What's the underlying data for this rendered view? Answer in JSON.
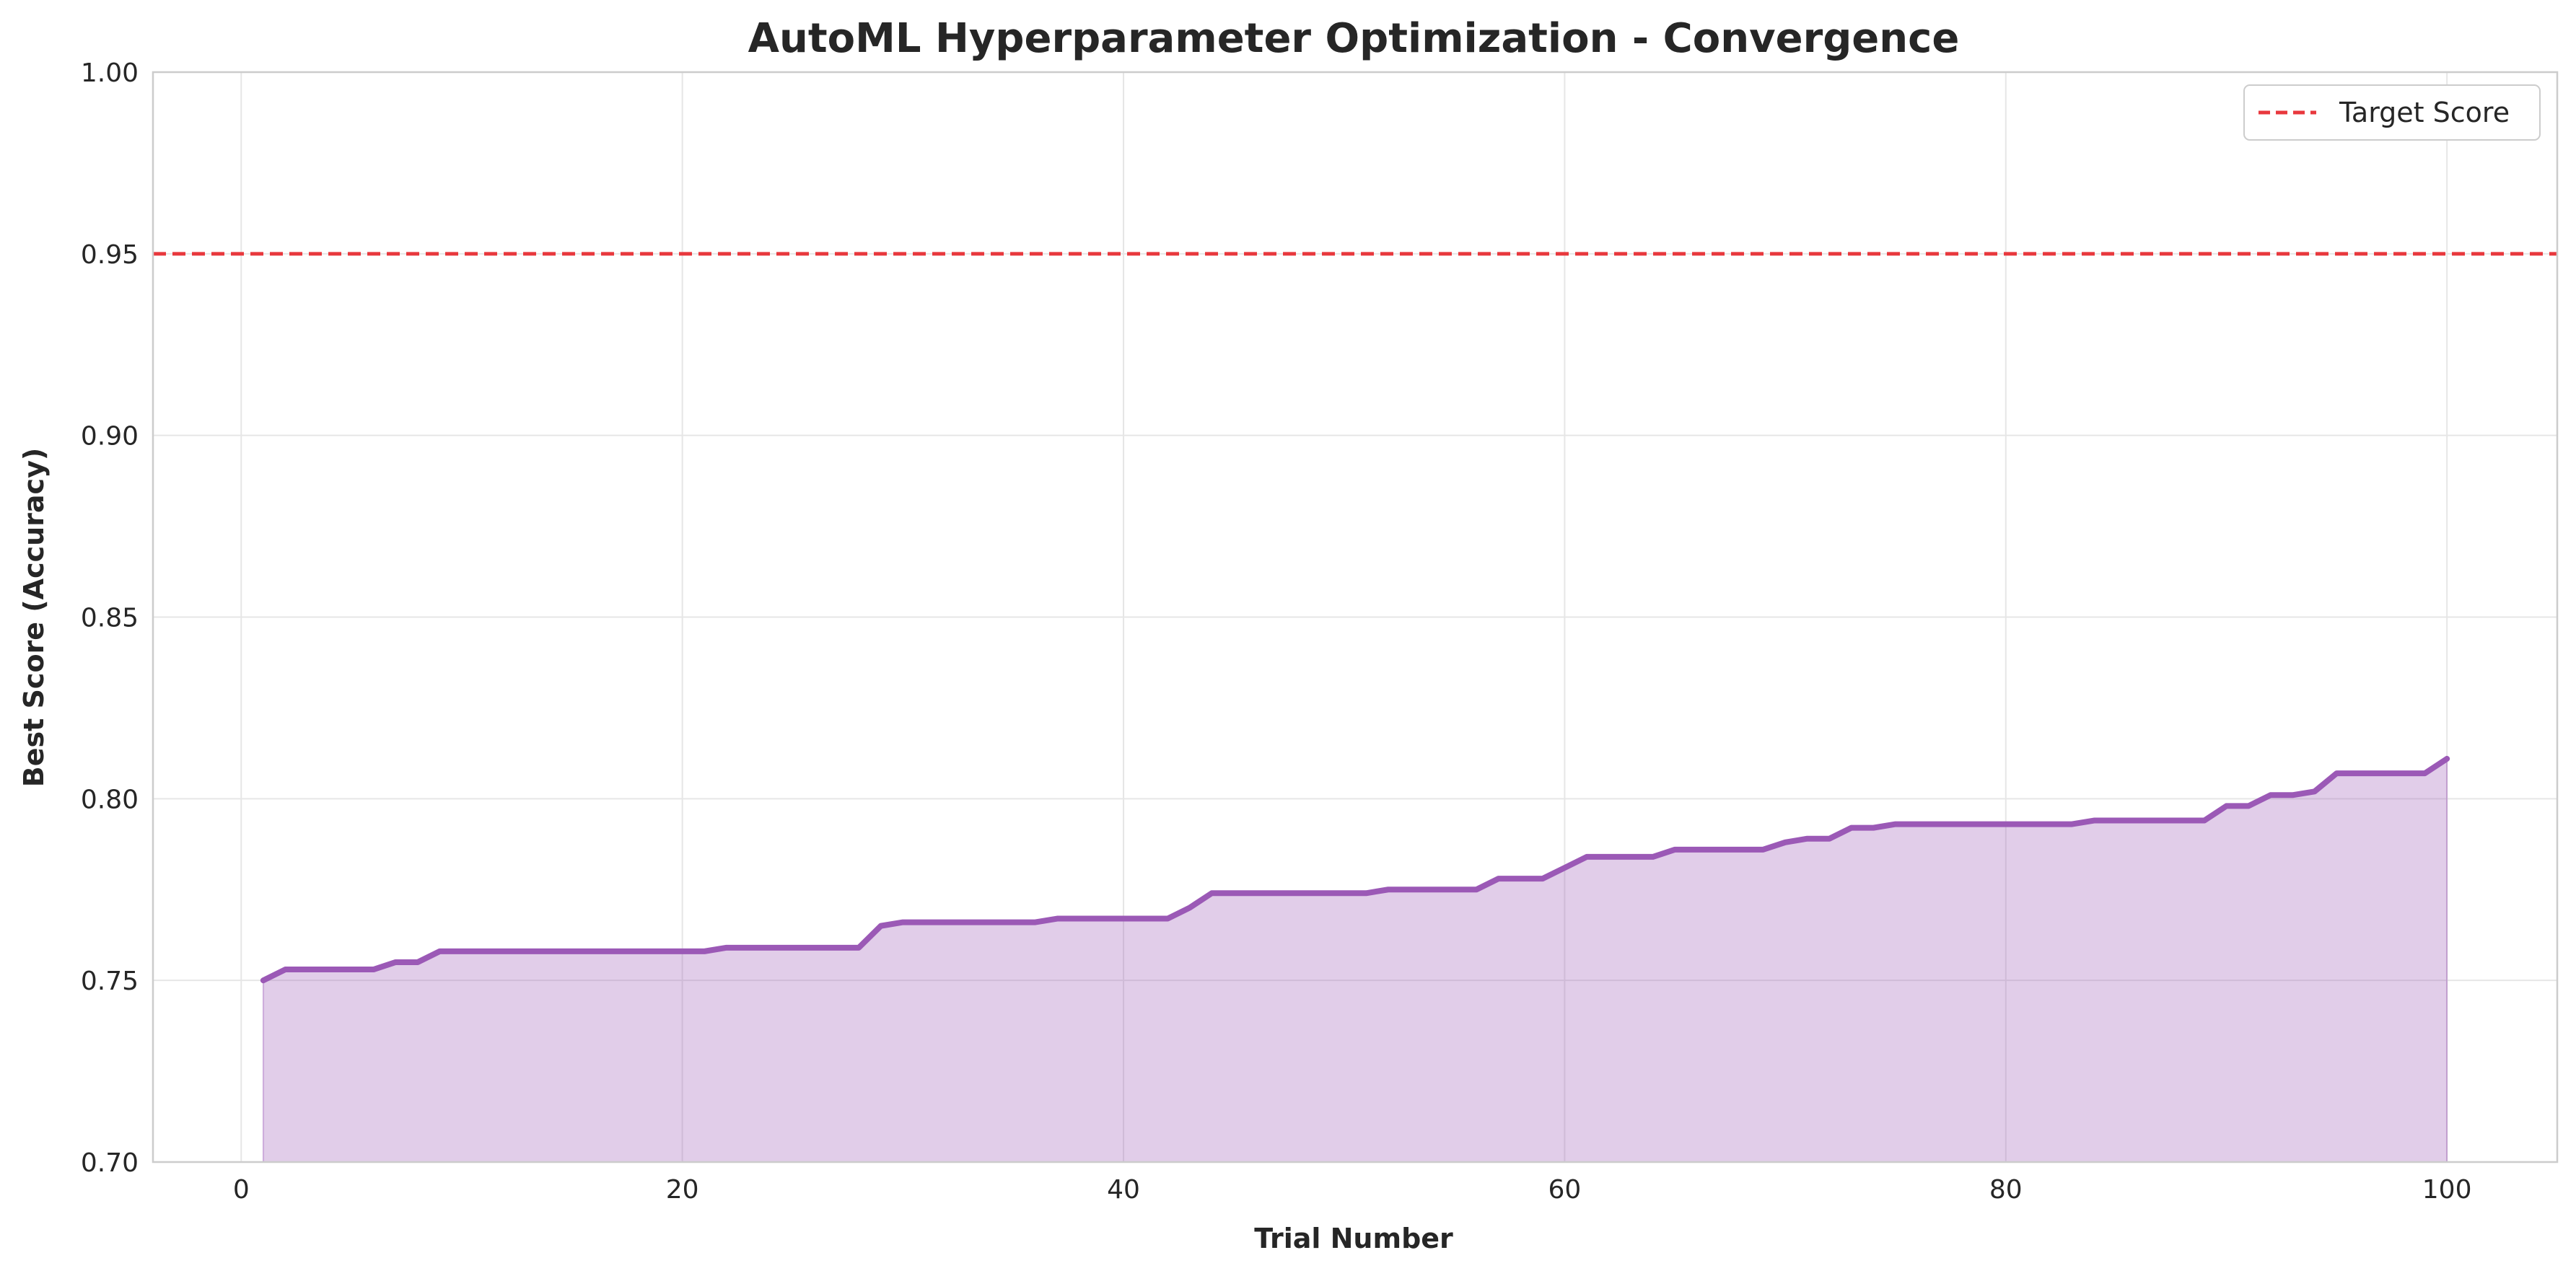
{
  "chart_data": {
    "type": "area",
    "title": "AutoML Hyperparameter Optimization - Convergence",
    "xlabel": "Trial Number",
    "ylabel": "Best Score (Accuracy)",
    "xlim": [
      -4,
      105
    ],
    "ylim": [
      0.7,
      1.0
    ],
    "xticks": [
      0,
      20,
      40,
      60,
      80,
      100
    ],
    "yticks": [
      0.7,
      0.75,
      0.8,
      0.85,
      0.9,
      0.95,
      1.0
    ],
    "ytick_labels": [
      "0.70",
      "0.75",
      "0.80",
      "0.85",
      "0.90",
      "0.95",
      "1.00"
    ],
    "grid": true,
    "legend_position": "top-right",
    "series": [
      {
        "x": [
          1,
          2,
          3,
          4,
          5,
          6,
          7,
          8,
          9,
          10,
          11,
          12,
          13,
          14,
          15,
          16,
          17,
          18,
          19,
          20,
          21,
          22,
          23,
          24,
          25,
          26,
          27,
          28,
          29,
          30,
          31,
          32,
          33,
          34,
          35,
          36,
          37,
          38,
          39,
          40,
          41,
          42,
          43,
          44,
          45,
          46,
          47,
          48,
          49,
          50,
          51,
          52,
          53,
          54,
          55,
          56,
          57,
          58,
          59,
          60,
          61,
          62,
          63,
          64,
          65,
          66,
          67,
          68,
          69,
          70,
          71,
          72,
          73,
          74,
          75,
          76,
          77,
          78,
          79,
          80,
          81,
          82,
          83,
          84,
          85,
          86,
          87,
          88,
          89,
          90,
          91,
          92,
          93,
          94,
          95,
          96,
          97,
          98,
          99,
          100
        ],
        "values": [
          0.75,
          0.753,
          0.753,
          0.753,
          0.753,
          0.753,
          0.755,
          0.755,
          0.758,
          0.758,
          0.758,
          0.758,
          0.758,
          0.758,
          0.758,
          0.758,
          0.758,
          0.758,
          0.758,
          0.758,
          0.758,
          0.759,
          0.759,
          0.759,
          0.759,
          0.759,
          0.759,
          0.759,
          0.765,
          0.766,
          0.766,
          0.766,
          0.766,
          0.766,
          0.766,
          0.766,
          0.767,
          0.767,
          0.767,
          0.767,
          0.767,
          0.767,
          0.77,
          0.774,
          0.774,
          0.774,
          0.774,
          0.774,
          0.774,
          0.774,
          0.774,
          0.775,
          0.775,
          0.775,
          0.775,
          0.775,
          0.778,
          0.778,
          0.778,
          0.781,
          0.784,
          0.784,
          0.784,
          0.784,
          0.786,
          0.786,
          0.786,
          0.786,
          0.786,
          0.788,
          0.789,
          0.789,
          0.792,
          0.792,
          0.793,
          0.793,
          0.793,
          0.793,
          0.793,
          0.793,
          0.793,
          0.793,
          0.793,
          0.794,
          0.794,
          0.794,
          0.794,
          0.794,
          0.794,
          0.798,
          0.798,
          0.801,
          0.801,
          0.802,
          0.807,
          0.807,
          0.807,
          0.807,
          0.807,
          0.811
        ],
        "color": "#9b59b6"
      }
    ],
    "reference_lines": [
      {
        "name": "Target Score",
        "y": 0.95,
        "color": "#e8383d",
        "style": "dashed"
      }
    ]
  }
}
